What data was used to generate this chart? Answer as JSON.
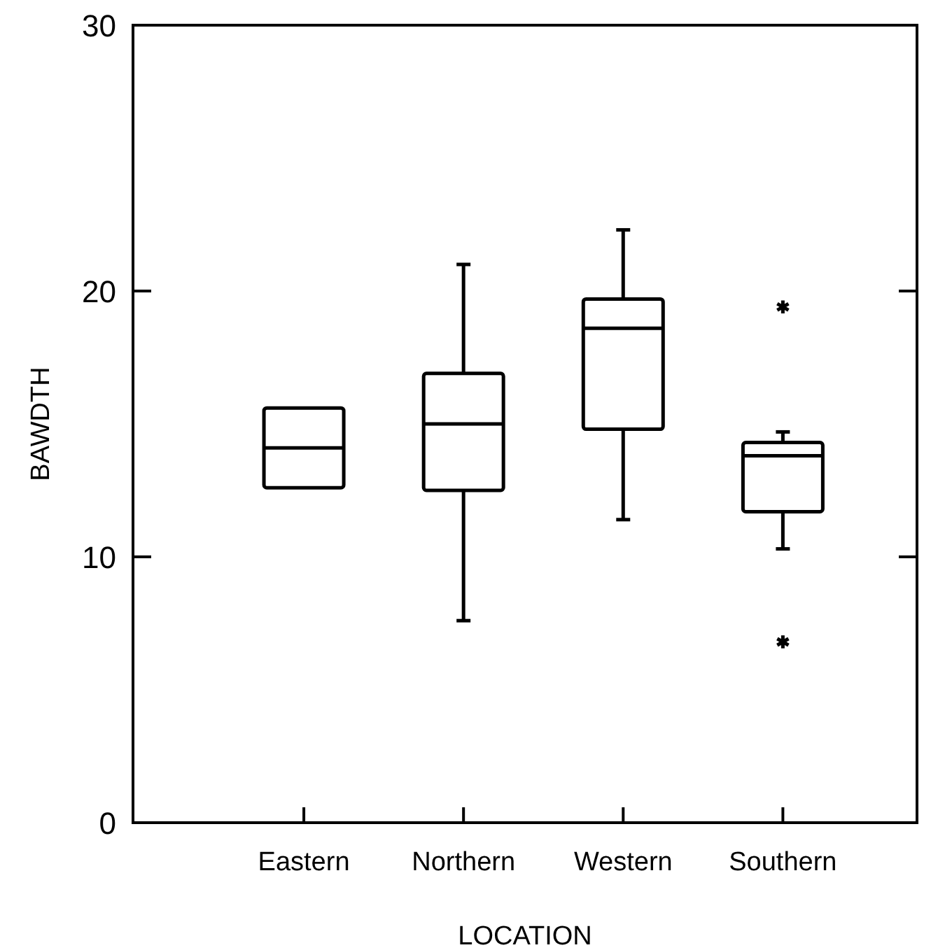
{
  "chart_data": {
    "type": "box",
    "xlabel": "LOCATION",
    "ylabel": "BAWDTH",
    "categories": [
      "Eastern",
      "Northern",
      "Western",
      "Southern"
    ],
    "boxes": [
      {
        "low": 12.6,
        "q1": 12.6,
        "median": 14.1,
        "q3": 15.6,
        "high": 15.6
      },
      {
        "low": 7.6,
        "q1": 12.5,
        "median": 15.0,
        "q3": 16.9,
        "high": 21.0
      },
      {
        "low": 11.4,
        "q1": 14.8,
        "median": 18.6,
        "q3": 19.7,
        "high": 22.3
      },
      {
        "low": 10.3,
        "q1": 11.7,
        "median": 13.8,
        "q3": 14.3,
        "high": 14.7,
        "outliers": [
          19.4,
          6.8
        ]
      }
    ],
    "ylim": [
      0,
      30
    ],
    "yticks": [
      0,
      10,
      20,
      30
    ],
    "grid": false
  }
}
